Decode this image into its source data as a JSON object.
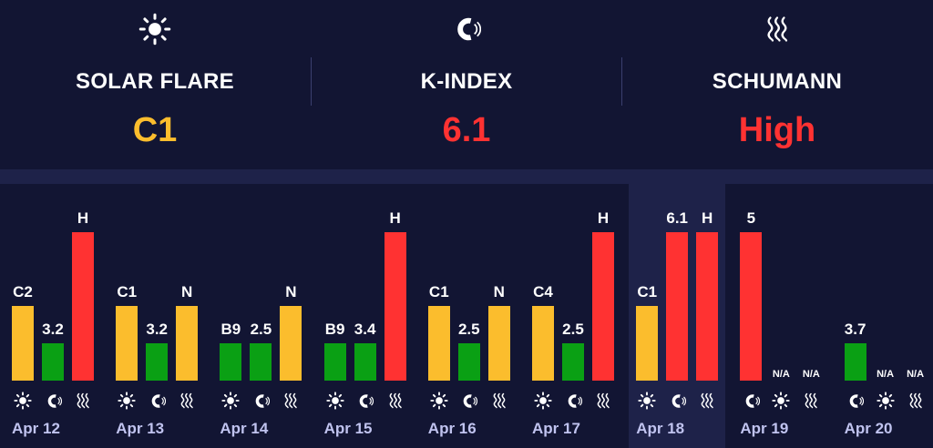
{
  "header": {
    "solar": {
      "title": "SOLAR FLARE",
      "value": "C1",
      "color": "#fbbd2d",
      "icon": "sun-icon"
    },
    "kindex": {
      "title": "K-INDEX",
      "value": "6.1",
      "color": "#ff3232",
      "icon": "magnet-icon"
    },
    "schumann": {
      "title": "SCHUMANN",
      "value": "High",
      "color": "#ff3232",
      "icon": "waves-icon"
    }
  },
  "colors": {
    "yellow": "#fbbd2d",
    "green": "#0aa014",
    "red": "#ff3232"
  },
  "chart_data": {
    "type": "bar",
    "categories": [
      "Apr 12",
      "Apr 13",
      "Apr 14",
      "Apr 15",
      "Apr 16",
      "Apr 17",
      "Apr 18",
      "Apr 19",
      "Apr 20"
    ],
    "highlighted": "Apr 18",
    "series": [
      {
        "name": "Solar flare",
        "icon": "sun-icon",
        "labels": [
          "C2",
          "C1",
          "B9",
          "B9",
          "C1",
          "C4",
          "C1",
          "N/A",
          "N/A"
        ],
        "levels": [
          0.5,
          0.5,
          0.25,
          0.25,
          0.5,
          0.5,
          0.5,
          null,
          null
        ],
        "colors": [
          "yellow",
          "yellow",
          "green",
          "green",
          "yellow",
          "yellow",
          "yellow",
          null,
          null
        ]
      },
      {
        "name": "K-index",
        "icon": "magnet-icon",
        "labels": [
          "3.2",
          "3.2",
          "2.5",
          "3.4",
          "2.5",
          "2.5",
          "6.1",
          "5",
          "3.7"
        ],
        "levels": [
          0.25,
          0.25,
          0.25,
          0.25,
          0.25,
          0.25,
          1.0,
          1.0,
          0.25
        ],
        "colors": [
          "green",
          "green",
          "green",
          "green",
          "green",
          "green",
          "red",
          "red",
          "green"
        ]
      },
      {
        "name": "Schumann",
        "icon": "waves-icon",
        "labels": [
          "H",
          "N",
          "N",
          "H",
          "N",
          "H",
          "H",
          "N/A",
          "N/A"
        ],
        "levels": [
          1.0,
          0.5,
          0.5,
          1.0,
          0.5,
          1.0,
          1.0,
          null,
          null
        ],
        "colors": [
          "red",
          "yellow",
          "yellow",
          "red",
          "yellow",
          "red",
          "red",
          null,
          null
        ]
      }
    ],
    "day_order": [
      [
        "solar",
        "kindex",
        "schumann"
      ],
      [
        "solar",
        "kindex",
        "schumann"
      ],
      [
        "solar",
        "kindex",
        "schumann"
      ],
      [
        "solar",
        "kindex",
        "schumann"
      ],
      [
        "solar",
        "kindex",
        "schumann"
      ],
      [
        "solar",
        "kindex",
        "schumann"
      ],
      [
        "solar",
        "kindex",
        "schumann"
      ],
      [
        "kindex",
        "solar",
        "schumann"
      ],
      [
        "kindex",
        "solar",
        "schumann"
      ]
    ]
  }
}
